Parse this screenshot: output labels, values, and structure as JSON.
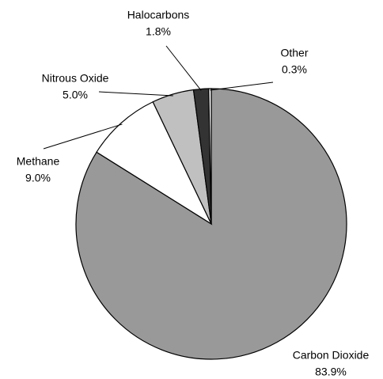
{
  "chart_data": {
    "type": "pie",
    "categories": [
      "Carbon Dioxide",
      "Methane",
      "Nitrous Oxide",
      "Halocarbons",
      "Other"
    ],
    "values": [
      83.9,
      9.0,
      5.0,
      1.8,
      0.3
    ],
    "value_labels": [
      "83.9%",
      "9.0%",
      "5.0%",
      "1.8%",
      "0.3%"
    ],
    "colors": [
      "#999999",
      "#ffffff",
      "#c0c0c0",
      "#333333",
      "#ffffff"
    ]
  }
}
